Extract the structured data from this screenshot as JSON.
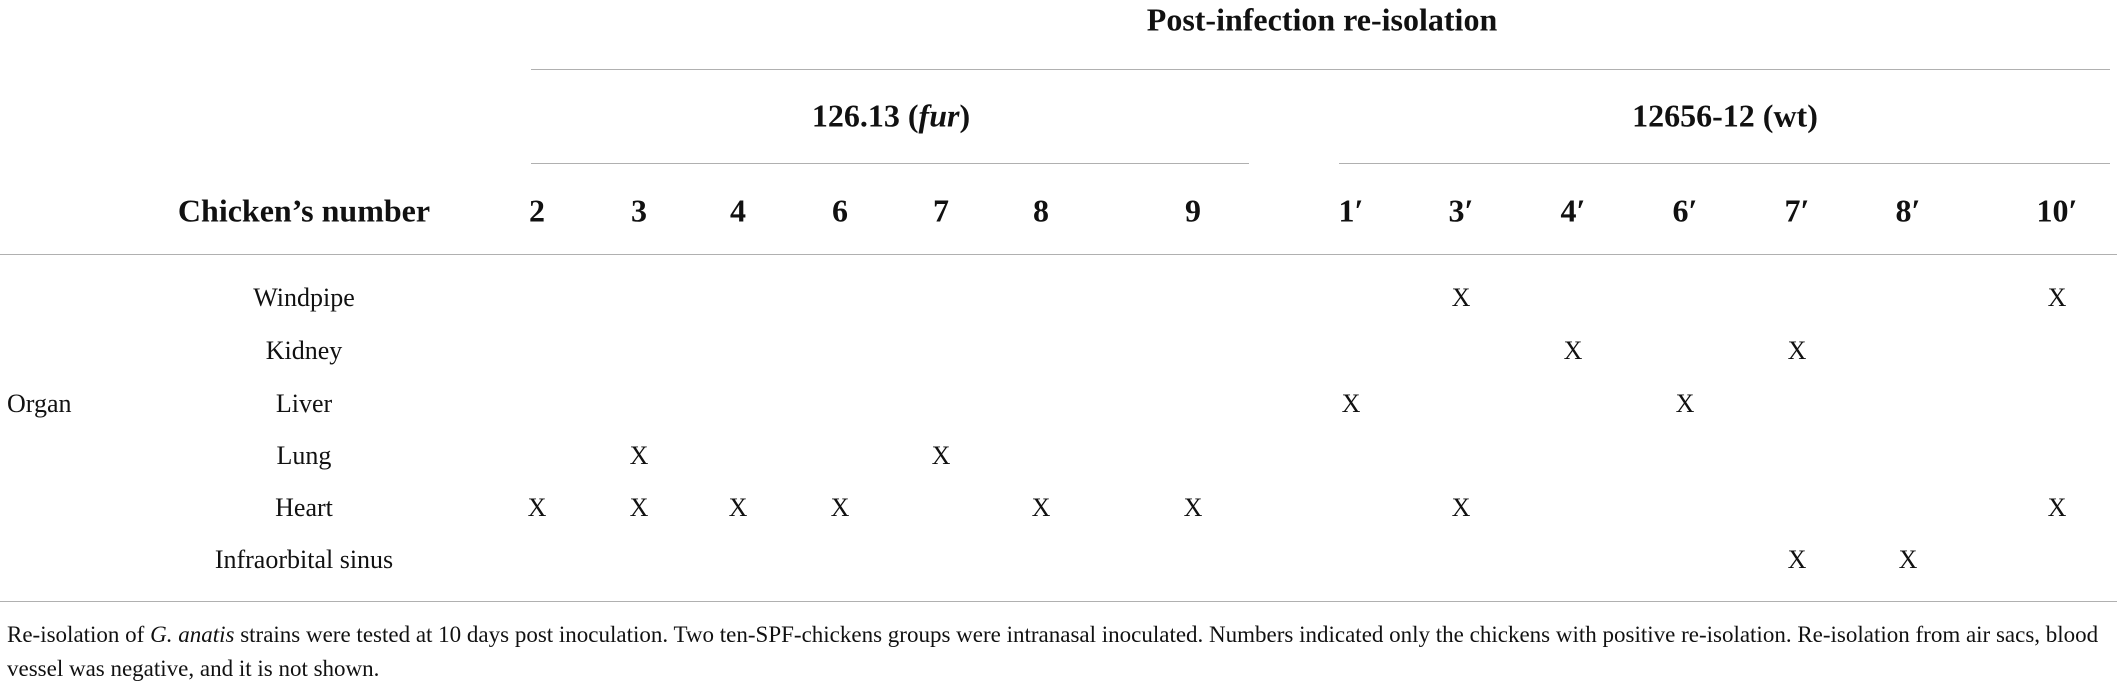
{
  "table": {
    "title": "Post-infection re-isolation",
    "groups": [
      {
        "label": [
          "126.13 (",
          "fur",
          ")"
        ],
        "columns": [
          "2",
          "3",
          "4",
          "6",
          "7",
          "8",
          "9"
        ]
      },
      {
        "label": [
          "12656-12 (wt)"
        ],
        "columns": [
          "1′",
          "3′",
          "4′",
          "6′",
          "7′",
          "8′",
          "10′"
        ]
      }
    ],
    "row_header": "Chicken’s number",
    "row_group": "Organ",
    "rows": [
      {
        "name": "Windpipe",
        "cells": [
          null,
          null,
          null,
          null,
          null,
          null,
          null,
          null,
          "X",
          null,
          null,
          null,
          null,
          "X"
        ]
      },
      {
        "name": "Kidney",
        "cells": [
          null,
          null,
          null,
          null,
          null,
          null,
          null,
          null,
          null,
          "X",
          null,
          "X",
          null,
          null
        ]
      },
      {
        "name": "Liver",
        "cells": [
          null,
          null,
          null,
          null,
          null,
          null,
          null,
          "X",
          null,
          null,
          "X",
          null,
          null,
          null
        ]
      },
      {
        "name": "Lung",
        "cells": [
          null,
          "X",
          null,
          null,
          "X",
          null,
          null,
          null,
          null,
          null,
          null,
          null,
          null,
          null
        ]
      },
      {
        "name": "Heart",
        "cells": [
          "X",
          "X",
          "X",
          "X",
          null,
          "X",
          "X",
          null,
          "X",
          null,
          null,
          null,
          null,
          "X"
        ]
      },
      {
        "name": "Infraorbital sinus",
        "cells": [
          null,
          null,
          null,
          null,
          null,
          null,
          null,
          null,
          null,
          null,
          null,
          "X",
          "X",
          null
        ]
      }
    ],
    "footnote": [
      "Re-isolation of ",
      "G. anatis",
      " strains were tested at 10 days post inoculation. Two ten-SPF-chickens groups were intranasal inoculated. Numbers indicated only the chickens with positive re-isolation. Re-isolation from air sacs, blood vessel was negative, and it is not shown."
    ]
  }
}
